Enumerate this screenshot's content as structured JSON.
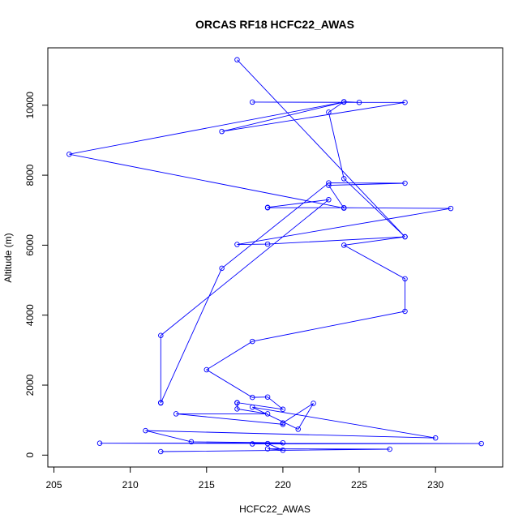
{
  "chart_data": {
    "type": "line",
    "title": "ORCAS RF18 HCFC22_AWAS",
    "xlabel": "HCFC22_AWAS",
    "ylabel": "Altitude (m)",
    "xlim": [
      204.6,
      234.4
    ],
    "ylim": [
      -340,
      11640
    ],
    "x_ticks": [
      205,
      210,
      215,
      220,
      225,
      230
    ],
    "y_ticks": [
      0,
      2000,
      4000,
      6000,
      8000,
      10000
    ],
    "grid": false,
    "legend": "none",
    "marker": "open-circle",
    "series": [
      {
        "color": "#0000ff",
        "points": [
          [
            212,
            100
          ],
          [
            227,
            170
          ],
          [
            219,
            180
          ],
          [
            220,
            140
          ],
          [
            219,
            330
          ],
          [
            218,
            320
          ],
          [
            233,
            330
          ],
          [
            208,
            340
          ],
          [
            220,
            350
          ],
          [
            214,
            380
          ],
          [
            211,
            700
          ],
          [
            230,
            490
          ],
          [
            218,
            1370
          ],
          [
            221,
            740
          ],
          [
            222,
            1480
          ],
          [
            220,
            920
          ],
          [
            220,
            880
          ],
          [
            213,
            1180
          ],
          [
            219,
            1180
          ],
          [
            217,
            1320
          ],
          [
            217,
            1490
          ],
          [
            217,
            1500
          ],
          [
            220,
            1310
          ],
          [
            219,
            1660
          ],
          [
            218,
            1650
          ],
          [
            215,
            2440
          ],
          [
            218,
            3250
          ],
          [
            228,
            4110
          ],
          [
            228,
            5040
          ],
          [
            224,
            6000
          ],
          [
            228,
            6240
          ],
          [
            219,
            6030
          ],
          [
            217,
            6020
          ],
          [
            231,
            7050
          ],
          [
            224,
            7070
          ],
          [
            219,
            7070
          ],
          [
            219,
            7080
          ],
          [
            223,
            7300
          ],
          [
            212,
            3420
          ],
          [
            212,
            1500
          ],
          [
            212,
            1490
          ],
          [
            216,
            5340
          ],
          [
            223,
            7780
          ],
          [
            228,
            7770
          ],
          [
            223,
            7710
          ],
          [
            224,
            7060
          ],
          [
            206,
            8600
          ],
          [
            224,
            10090
          ],
          [
            216,
            9250
          ],
          [
            228,
            10080
          ],
          [
            218,
            10090
          ],
          [
            225,
            10080
          ],
          [
            224,
            10100
          ],
          [
            223,
            9800
          ],
          [
            224,
            7900
          ],
          [
            228,
            6240
          ],
          [
            217,
            11300
          ]
        ]
      }
    ]
  }
}
